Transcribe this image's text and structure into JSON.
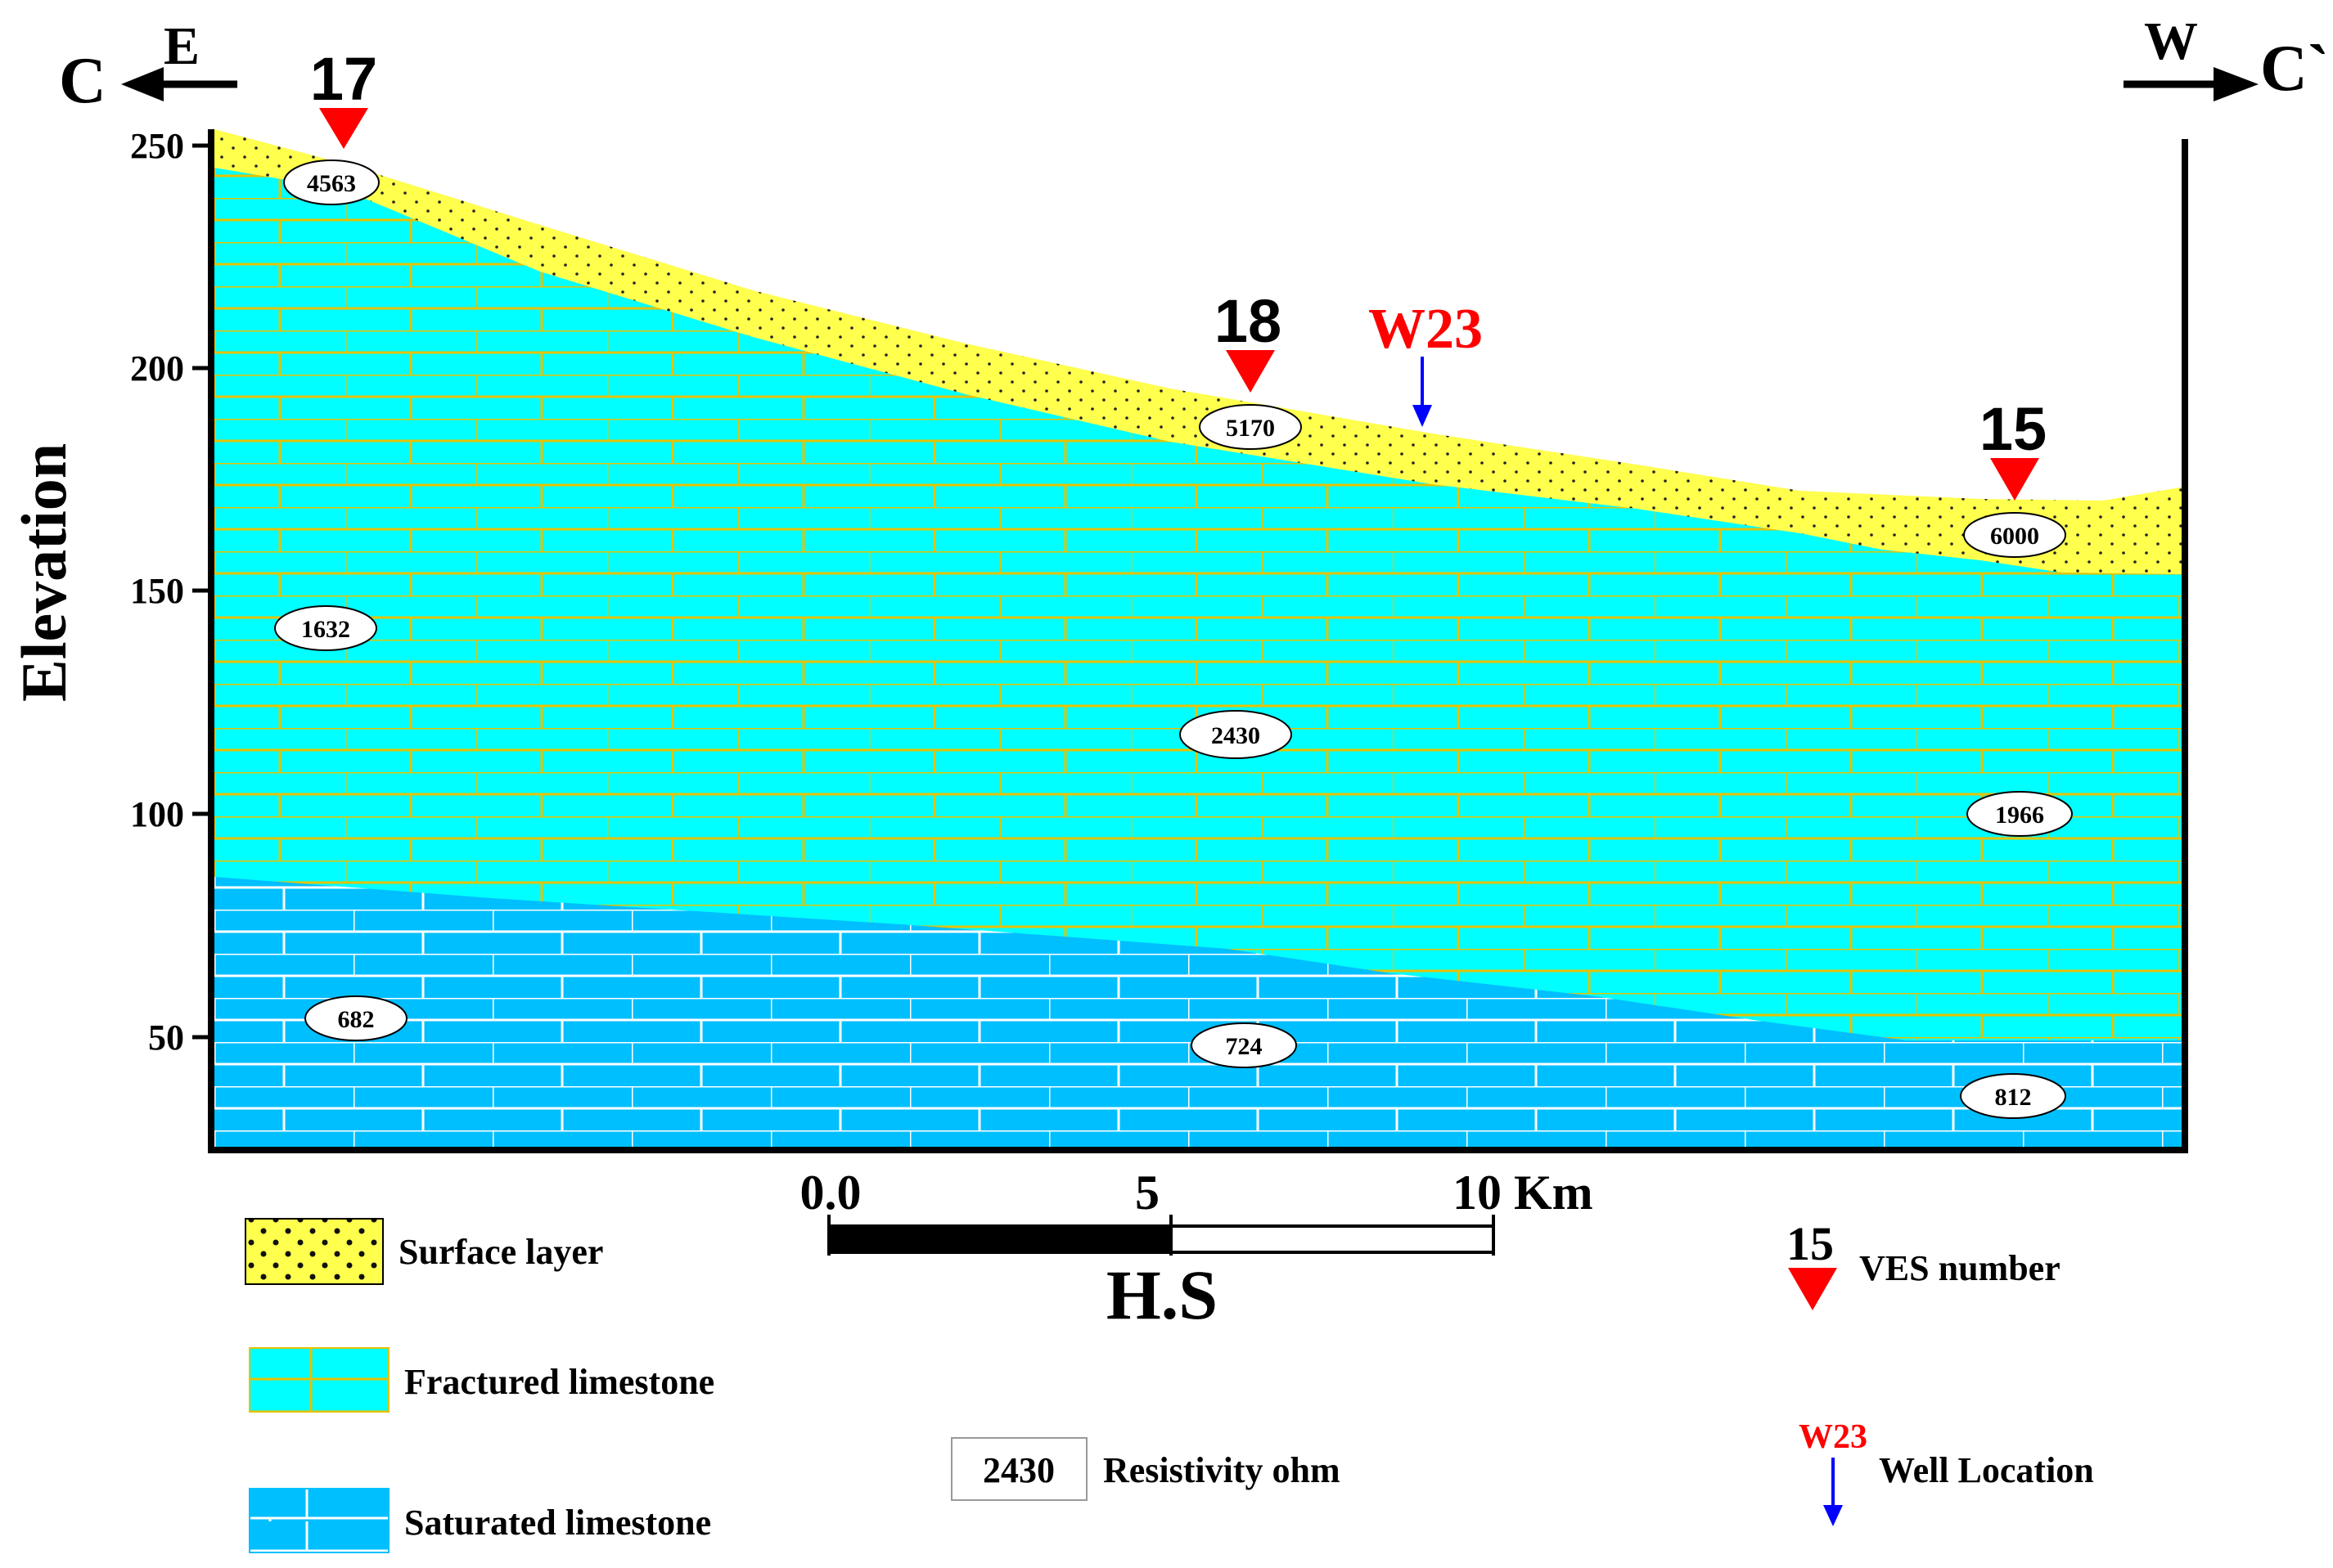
{
  "header": {
    "left_letter": "C",
    "left_dir": "E",
    "right_letter": "C`",
    "right_dir": "W"
  },
  "axis": {
    "ylabel": "Elevation",
    "yticks": [
      "250",
      "200",
      "150",
      "100",
      "50"
    ]
  },
  "ves_points": [
    {
      "label": "17"
    },
    {
      "label": "18"
    },
    {
      "label": "15"
    }
  ],
  "well": {
    "label": "W23"
  },
  "resistivity_labels": {
    "surface": [
      "4563",
      "5170",
      "6000"
    ],
    "fractured": [
      "1632",
      "2430",
      "1966"
    ],
    "saturated": [
      "682",
      "724",
      "812"
    ]
  },
  "scale": {
    "start": "0.0",
    "mid": "5",
    "end": "10 Km",
    "caption": "H.S"
  },
  "legend": {
    "surface_layer": "Surface layer",
    "fractured_limestone": "Fractured limestone",
    "saturated_limestone": "Saturated limestone",
    "resistivity_sample": "2430",
    "resistivity_label": "Resistivity ohm",
    "ves_sample": "15",
    "ves_label": "VES number",
    "well_sample": "W23",
    "well_label": "Well Location"
  },
  "colors": {
    "surface": "#ffff4d",
    "fractured": "#00ffff",
    "saturated": "#00bfff",
    "brick_fractured": "#e6c200",
    "brick_saturated": "#ffffff",
    "ves_marker": "#ff0000",
    "well_text": "#ff0000",
    "well_arrow": "#0000ff"
  }
}
